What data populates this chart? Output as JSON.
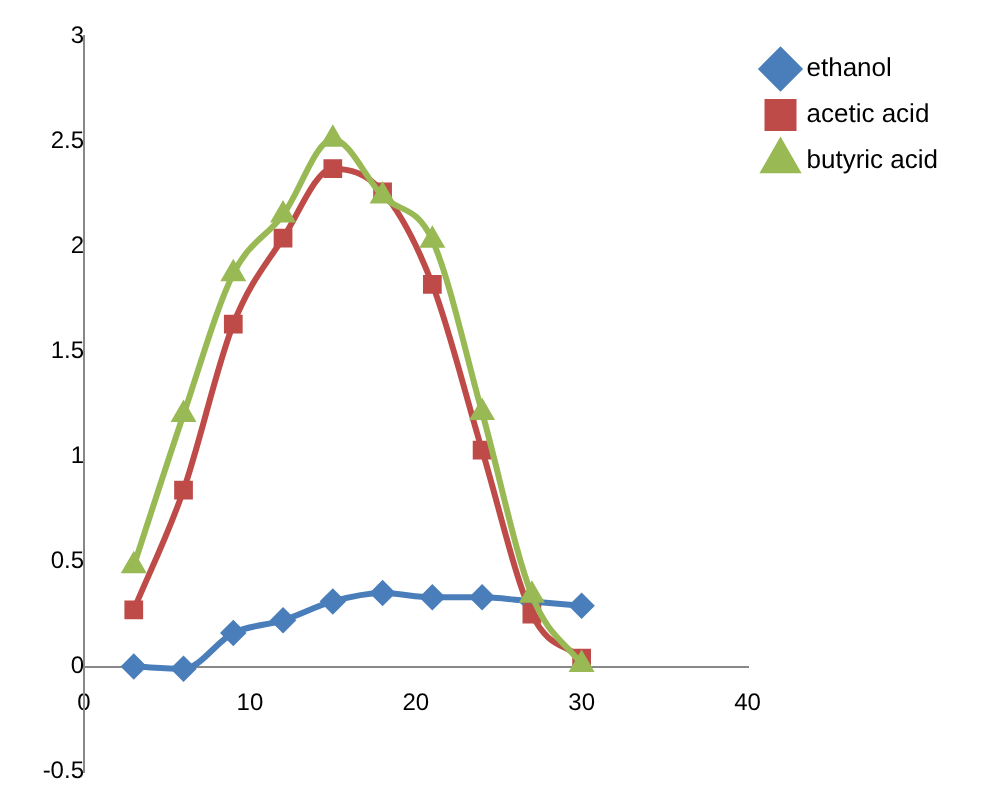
{
  "chart_data": {
    "type": "line",
    "x": [
      3,
      6,
      9,
      12,
      15,
      18,
      21,
      24,
      27,
      30
    ],
    "xlim": [
      0,
      40
    ],
    "xticks": [
      0,
      10,
      20,
      30,
      40
    ],
    "ylim": [
      -0.5,
      3
    ],
    "yticks": [
      -0.5,
      0,
      0.5,
      1,
      1.5,
      2,
      2.5,
      3
    ],
    "grid": false,
    "legend": "right",
    "series": [
      {
        "name": "ethanol",
        "color": "#4a7ebb",
        "marker": "diamond",
        "values": [
          0,
          -0.01,
          0.16,
          0.22,
          0.31,
          0.35,
          0.33,
          0.33,
          0.31,
          0.29
        ]
      },
      {
        "name": "acetic acid",
        "color": "#be4b48",
        "marker": "square",
        "values": [
          0.27,
          0.84,
          1.63,
          2.04,
          2.37,
          2.26,
          1.82,
          1.03,
          0.25,
          0.04
        ]
      },
      {
        "name": "butyric acid",
        "color": "#98b954",
        "marker": "triangle",
        "values": [
          0.48,
          1.2,
          1.87,
          2.15,
          2.51,
          2.24,
          2.03,
          1.21,
          0.34,
          0.01
        ]
      }
    ]
  }
}
